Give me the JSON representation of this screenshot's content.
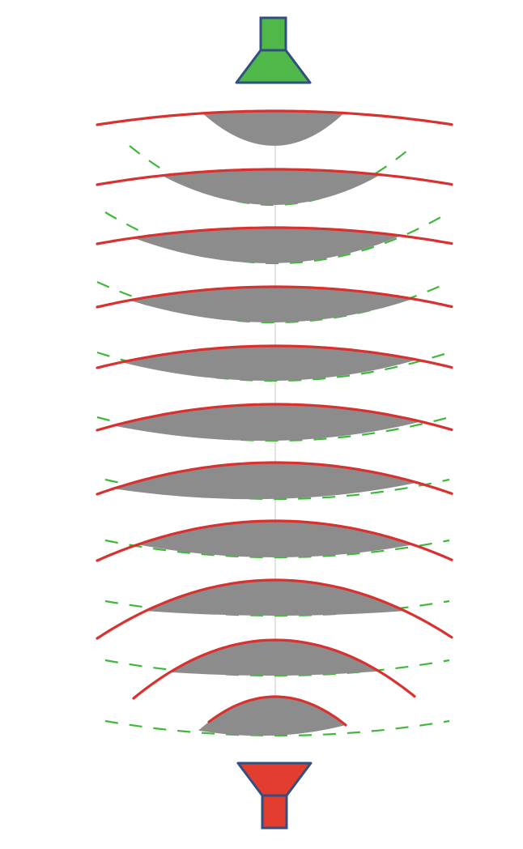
{
  "diagram": {
    "colors": {
      "top_emitter_fill": "#4fb848",
      "bottom_emitter_fill": "#e23d2f",
      "emitter_outline": "#2f5080",
      "red_front": "#d9312f",
      "green_front": "#3fb83a",
      "lens_fill": "#8c8c8c",
      "axis_line": "#d0d0d0"
    },
    "top_emitter": {
      "icon": "green-horn-emitter-icon"
    },
    "bottom_emitter": {
      "icon": "red-horn-receiver-icon"
    },
    "lens_count": 11
  }
}
